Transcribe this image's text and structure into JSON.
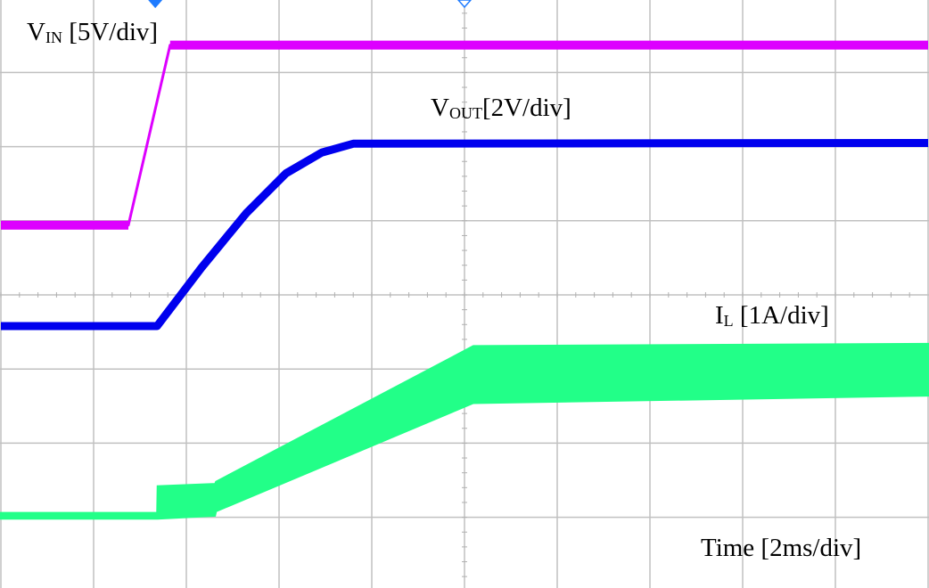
{
  "chart_data": {
    "type": "line",
    "title": "",
    "grid": true,
    "x_divisions": 10,
    "y_divisions": 8,
    "xlim_ms": [
      0,
      20
    ],
    "ylim_div": [
      -4,
      4
    ],
    "time_scale": {
      "label": "Time [2ms/div]"
    },
    "series": [
      {
        "name": "VIN",
        "label_main": "V",
        "label_sub": "IN",
        "label_rest": " [5V/div]",
        "color": "#dd00ff",
        "points": [
          [
            0,
            0.94
          ],
          [
            2.75,
            0.94
          ],
          [
            3.65,
            3.37
          ],
          [
            20,
            3.37
          ]
        ]
      },
      {
        "name": "VOUT",
        "label_main": "V",
        "label_sub": "OUT",
        "label_rest": "[2V/div]",
        "color": "#0000ee",
        "points": [
          [
            0,
            -0.42
          ],
          [
            3.37,
            -0.42
          ],
          [
            4.33,
            0.37
          ],
          [
            5.29,
            1.1
          ],
          [
            6.15,
            1.64
          ],
          [
            6.92,
            1.92
          ],
          [
            7.6,
            2.04
          ],
          [
            20,
            2.05
          ]
        ]
      },
      {
        "name": "IL",
        "label_main": "I",
        "label_sub": "L",
        "label_rest": " [1A/div]",
        "color": "#22ff88",
        "envelope": [
          [
            0,
            -3.02,
            -2.94
          ],
          [
            3.37,
            -3.02,
            -2.94
          ],
          [
            3.38,
            -3.02,
            -2.58
          ],
          [
            4.62,
            -2.98,
            -2.55
          ],
          [
            4.64,
            -2.92,
            -2.52
          ],
          [
            10.19,
            -1.46,
            -0.69
          ],
          [
            20,
            -1.36,
            -0.66
          ]
        ]
      }
    ],
    "markers": [
      {
        "type": "trigger-position",
        "time_ms": 3.33,
        "color": "#1e7bff",
        "filled": true
      },
      {
        "type": "center-reference",
        "time_ms": 10,
        "color": "#1e7bff",
        "filled": false
      }
    ]
  }
}
